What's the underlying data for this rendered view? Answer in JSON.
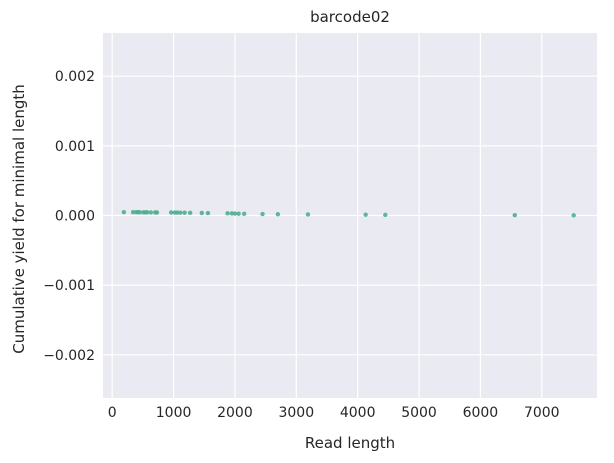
{
  "chart_data": {
    "type": "scatter",
    "title": "barcode02",
    "xlabel": "Read length",
    "ylabel": "Cumulative yield for minimal length",
    "xlim": [
      -150,
      7900
    ],
    "ylim": [
      -0.00262,
      0.00262
    ],
    "xticks": [
      0,
      1000,
      2000,
      3000,
      4000,
      5000,
      6000,
      7000
    ],
    "xtick_labels": [
      "0",
      "1000",
      "2000",
      "3000",
      "4000",
      "5000",
      "6000",
      "7000"
    ],
    "yticks": [
      0.002,
      0.001,
      0.0,
      -0.001,
      -0.002
    ],
    "ytick_labels": [
      "0.002",
      "0.001",
      "0.000",
      "−0.001",
      "−0.002"
    ],
    "grid": true,
    "colors": {
      "background": "#eaeaf2",
      "grid": "#ffffff",
      "marker": "#4daf8f"
    },
    "series": [
      {
        "x": [
          190,
          340,
          390,
          420,
          450,
          510,
          540,
          570,
          630,
          700,
          730,
          960,
          1020,
          1060,
          1110,
          1180,
          1270,
          1460,
          1560,
          1880,
          1950,
          2000,
          2060,
          2150,
          2450,
          2700,
          3190,
          4130,
          4450,
          6560,
          7520
        ],
        "y": [
          4.8e-05,
          4.8e-05,
          4.7e-05,
          4.7e-05,
          4.6e-05,
          4.6e-05,
          4.5e-05,
          4.5e-05,
          4.4e-05,
          4.4e-05,
          4.3e-05,
          4.3e-05,
          4.2e-05,
          4.2e-05,
          4.1e-05,
          4e-05,
          3.8e-05,
          3.6e-05,
          3.4e-05,
          3.2e-05,
          3e-05,
          2.8e-05,
          2.6e-05,
          2.4e-05,
          2.1e-05,
          1.8e-05,
          1.5e-05,
          1.2e-05,
          9e-06,
          5e-06,
          2e-06
        ]
      }
    ]
  }
}
